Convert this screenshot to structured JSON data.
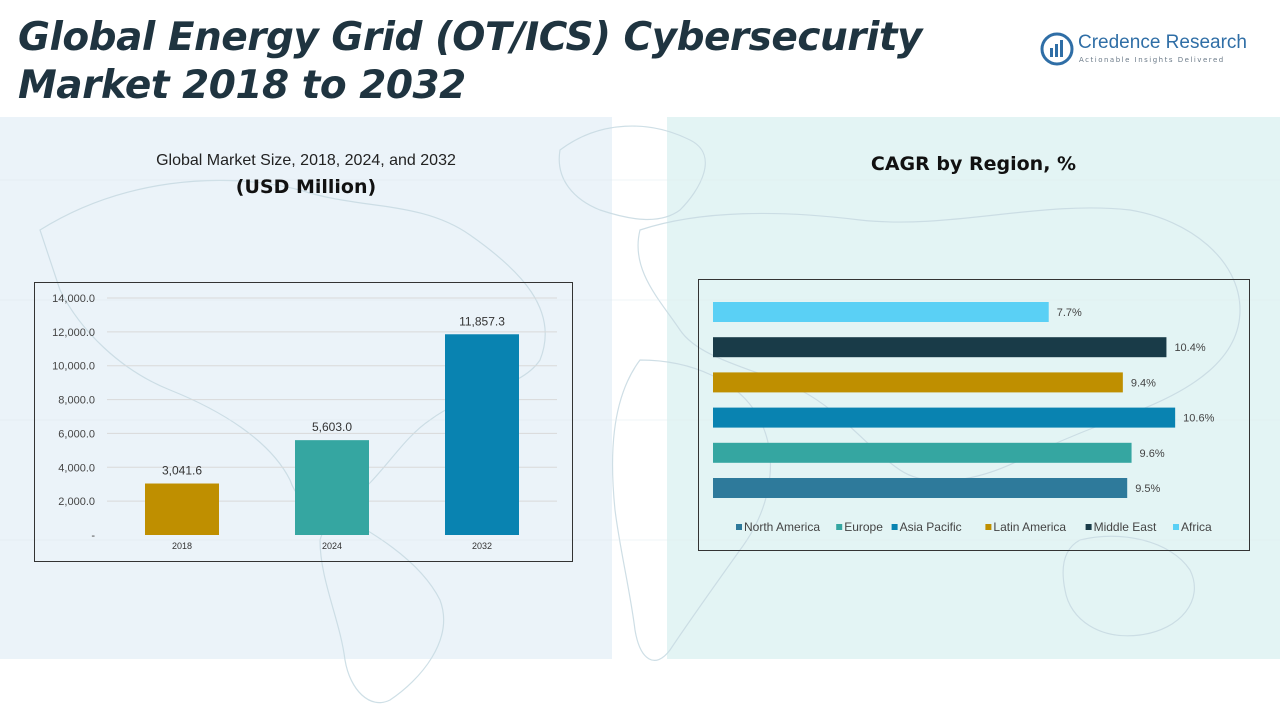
{
  "header": {
    "title_line1": "Global Energy Grid (OT/ICS) Cybersecurity",
    "title_line2": "Market 2018 to 2032"
  },
  "logo": {
    "name": "Credence Research",
    "tagline": "Actionable Insights Delivered"
  },
  "left_panel": {
    "title": "Global Market Size, 2018, 2024, and 2032",
    "unit": "(USD Million)"
  },
  "right_panel": {
    "title": "CAGR by Region, %"
  },
  "colors": {
    "gold": "#bf8f00",
    "teal": "#35a6a1",
    "blue": "#0983b1",
    "north_america": "#2e7a9b",
    "europe": "#35a6a1",
    "asia_pacific": "#0983b1",
    "latin_america": "#bf8f00",
    "middle_east": "#193b48",
    "africa": "#5ad0f5"
  },
  "chart_data": [
    {
      "type": "bar",
      "categories": [
        "2018",
        "2024",
        "2032"
      ],
      "values": [
        3041.6,
        5603.0,
        11857.3
      ],
      "value_labels": [
        "3,041.6",
        "5,603.0",
        "11,857.3"
      ],
      "bar_colors": [
        "#bf8f00",
        "#35a6a1",
        "#0983b1"
      ],
      "ylim": [
        0,
        14000
      ],
      "yticks": [
        0,
        2000,
        4000,
        6000,
        8000,
        10000,
        12000,
        14000
      ],
      "ytick_labels": [
        "-",
        "2,000.0",
        "4,000.0",
        "6,000.0",
        "8,000.0",
        "10,000.0",
        "12,000.0",
        "14,000.0"
      ],
      "grid": true
    },
    {
      "type": "bar",
      "orientation": "horizontal",
      "series": [
        {
          "name": "North America",
          "value": 9.5,
          "label": "9.5%",
          "color": "#2e7a9b"
        },
        {
          "name": "Europe",
          "value": 9.6,
          "label": "9.6%",
          "color": "#35a6a1"
        },
        {
          "name": "Asia Pacific",
          "value": 10.6,
          "label": "10.6%",
          "color": "#0983b1"
        },
        {
          "name": "Latin America",
          "value": 9.4,
          "label": "9.4%",
          "color": "#bf8f00"
        },
        {
          "name": "Middle East",
          "value": 10.4,
          "label": "10.4%",
          "color": "#193b48"
        },
        {
          "name": "Africa",
          "value": 7.7,
          "label": "7.7%",
          "color": "#5ad0f5"
        }
      ],
      "xlim": [
        0,
        12
      ],
      "legend": "bottom",
      "grid": false
    }
  ]
}
